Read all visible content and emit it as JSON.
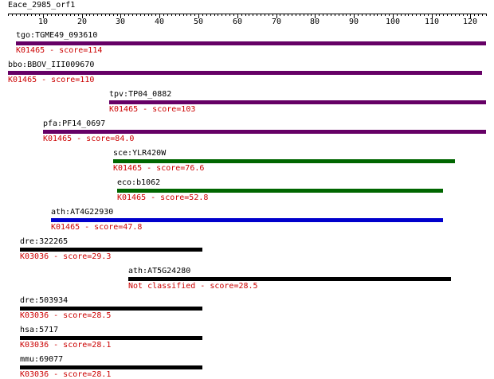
{
  "query": {
    "name": "Eace_2985_orf1"
  },
  "axis": {
    "min": 1,
    "max": 124,
    "major_ticks": [
      {
        "value": 10,
        "label": "10"
      },
      {
        "value": 20,
        "label": "20"
      },
      {
        "value": 30,
        "label": "30"
      },
      {
        "value": 40,
        "label": "40"
      },
      {
        "value": 50,
        "label": "50"
      },
      {
        "value": 60,
        "label": "60"
      },
      {
        "value": 70,
        "label": "70"
      },
      {
        "value": 80,
        "label": "80"
      },
      {
        "value": 90,
        "label": "90"
      },
      {
        "value": 100,
        "label": "100"
      },
      {
        "value": 110,
        "label": "110"
      },
      {
        "value": 120,
        "label": "120"
      }
    ]
  },
  "colors": {
    "purple": "#660066",
    "green": "#006600",
    "blue": "#0000cc",
    "black": "#000000",
    "score_text": "#cc0000"
  },
  "hits": [
    {
      "name": "tgo:TGME49_093610",
      "annotation": "K01465 - score=114",
      "start": 3,
      "end": 124,
      "color": "#660066"
    },
    {
      "name": "bbo:BBOV_III009670",
      "annotation": "K01465 - score=110",
      "start": 1,
      "end": 123,
      "color": "#660066"
    },
    {
      "name": "tpv:TP04_0882",
      "annotation": "K01465 - score=103",
      "start": 27,
      "end": 124,
      "color": "#660066"
    },
    {
      "name": "pfa:PF14_0697",
      "annotation": "K01465 - score=84.0",
      "start": 10,
      "end": 124,
      "color": "#660066"
    },
    {
      "name": "sce:YLR420W",
      "annotation": "K01465 - score=76.6",
      "start": 28,
      "end": 116,
      "color": "#006600"
    },
    {
      "name": "eco:b1062",
      "annotation": "K01465 - score=52.8",
      "start": 29,
      "end": 113,
      "color": "#006600"
    },
    {
      "name": "ath:AT4G22930",
      "annotation": "K01465 - score=47.8",
      "start": 12,
      "end": 113,
      "color": "#0000cc"
    },
    {
      "name": "dre:322265",
      "annotation": "K03036 - score=29.3",
      "start": 4,
      "end": 51,
      "color": "#000000"
    },
    {
      "name": "ath:AT5G24280",
      "annotation": "Not classified - score=28.5",
      "start": 32,
      "end": 115,
      "color": "#000000"
    },
    {
      "name": "dre:503934",
      "annotation": "K03036 - score=28.5",
      "start": 4,
      "end": 51,
      "color": "#000000"
    },
    {
      "name": "hsa:5717",
      "annotation": "K03036 - score=28.1",
      "start": 4,
      "end": 51,
      "color": "#000000"
    },
    {
      "name": "mmu:69077",
      "annotation": "K03036 - score=28.1",
      "start": 4,
      "end": 51,
      "color": "#000000"
    }
  ]
}
